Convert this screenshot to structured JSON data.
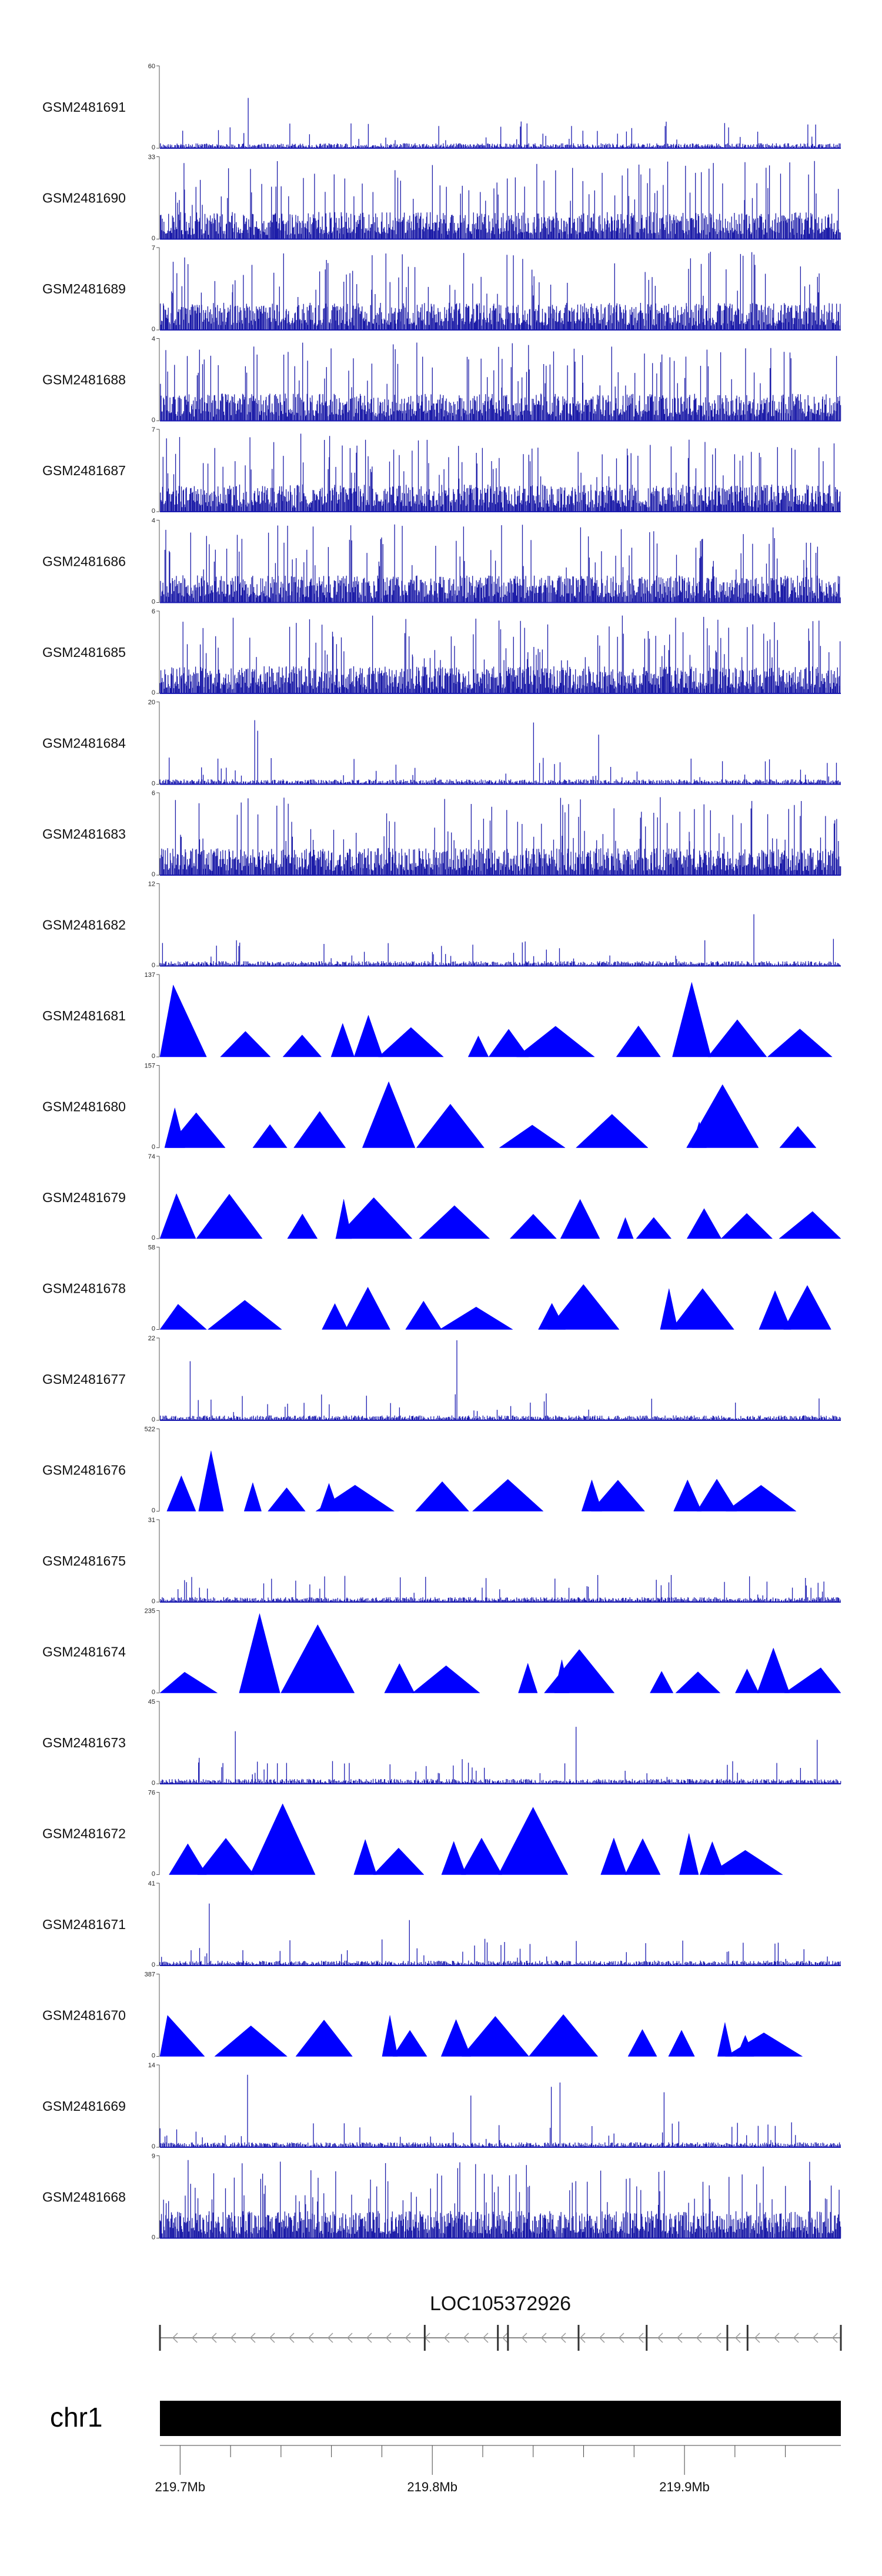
{
  "chart_data": {
    "type": "area",
    "tracks": [
      {
        "name": "GSM2481691",
        "ymax": 60,
        "ymin": 0,
        "style": "signal"
      },
      {
        "name": "GSM2481690",
        "ymax": 33,
        "ymin": 0,
        "style": "dense"
      },
      {
        "name": "GSM2481689",
        "ymax": 7,
        "ymin": 0,
        "style": "dense"
      },
      {
        "name": "GSM2481688",
        "ymax": 4,
        "ymin": 0,
        "style": "dense"
      },
      {
        "name": "GSM2481687",
        "ymax": 7,
        "ymin": 0,
        "style": "dense"
      },
      {
        "name": "GSM2481686",
        "ymax": 4,
        "ymin": 0,
        "style": "dense"
      },
      {
        "name": "GSM2481685",
        "ymax": 6,
        "ymin": 0,
        "style": "dense"
      },
      {
        "name": "GSM2481684",
        "ymax": 20,
        "ymin": 0,
        "style": "signal"
      },
      {
        "name": "GSM2481683",
        "ymax": 6,
        "ymin": 0,
        "style": "dense"
      },
      {
        "name": "GSM2481682",
        "ymax": 12,
        "ymin": 0,
        "style": "signal"
      },
      {
        "name": "GSM2481681",
        "ymax": 137,
        "ymin": 0,
        "style": "triangles"
      },
      {
        "name": "GSM2481680",
        "ymax": 157,
        "ymin": 0,
        "style": "triangles"
      },
      {
        "name": "GSM2481679",
        "ymax": 74,
        "ymin": 0,
        "style": "triangles"
      },
      {
        "name": "GSM2481678",
        "ymax": 58,
        "ymin": 0,
        "style": "triangles"
      },
      {
        "name": "GSM2481677",
        "ymax": 22,
        "ymin": 0,
        "style": "signal"
      },
      {
        "name": "GSM2481676",
        "ymax": 522,
        "ymin": 0,
        "style": "triangles"
      },
      {
        "name": "GSM2481675",
        "ymax": 31,
        "ymin": 0,
        "style": "signal"
      },
      {
        "name": "GSM2481674",
        "ymax": 235,
        "ymin": 0,
        "style": "triangles"
      },
      {
        "name": "GSM2481673",
        "ymax": 45,
        "ymin": 0,
        "style": "signal"
      },
      {
        "name": "GSM2481672",
        "ymax": 76,
        "ymin": 0,
        "style": "triangles"
      },
      {
        "name": "GSM2481671",
        "ymax": 41,
        "ymin": 0,
        "style": "signal"
      },
      {
        "name": "GSM2481670",
        "ymax": 387,
        "ymin": 0,
        "style": "triangles"
      },
      {
        "name": "GSM2481669",
        "ymax": 14,
        "ymin": 0,
        "style": "signal"
      },
      {
        "name": "GSM2481668",
        "ymax": 9,
        "ymin": 0,
        "style": "dense"
      }
    ],
    "genomic_range_mb": [
      219.692,
      219.962
    ],
    "gene": {
      "label": "LOC105372926",
      "strand": "-",
      "start_mb": 219.692,
      "end_mb": 219.962,
      "exons_mb": [
        219.797,
        219.826,
        219.83,
        219.858,
        219.885,
        219.917,
        219.925
      ]
    },
    "chromosome": {
      "label": "chr1"
    },
    "axis": {
      "tick_labels": [
        "219.7Mb",
        "219.8Mb",
        "219.9Mb"
      ],
      "tick_values_mb": [
        219.7,
        219.8,
        219.9
      ],
      "minor_tick_values_mb": [
        219.72,
        219.74,
        219.76,
        219.78,
        219.82,
        219.84,
        219.86,
        219.88,
        219.92,
        219.94
      ]
    },
    "colors": {
      "signal": "#1a1ab0",
      "triangles": "#0000ff",
      "dense": "#1c1ca8",
      "axis": "#444444",
      "chromosome": "#000000"
    }
  }
}
